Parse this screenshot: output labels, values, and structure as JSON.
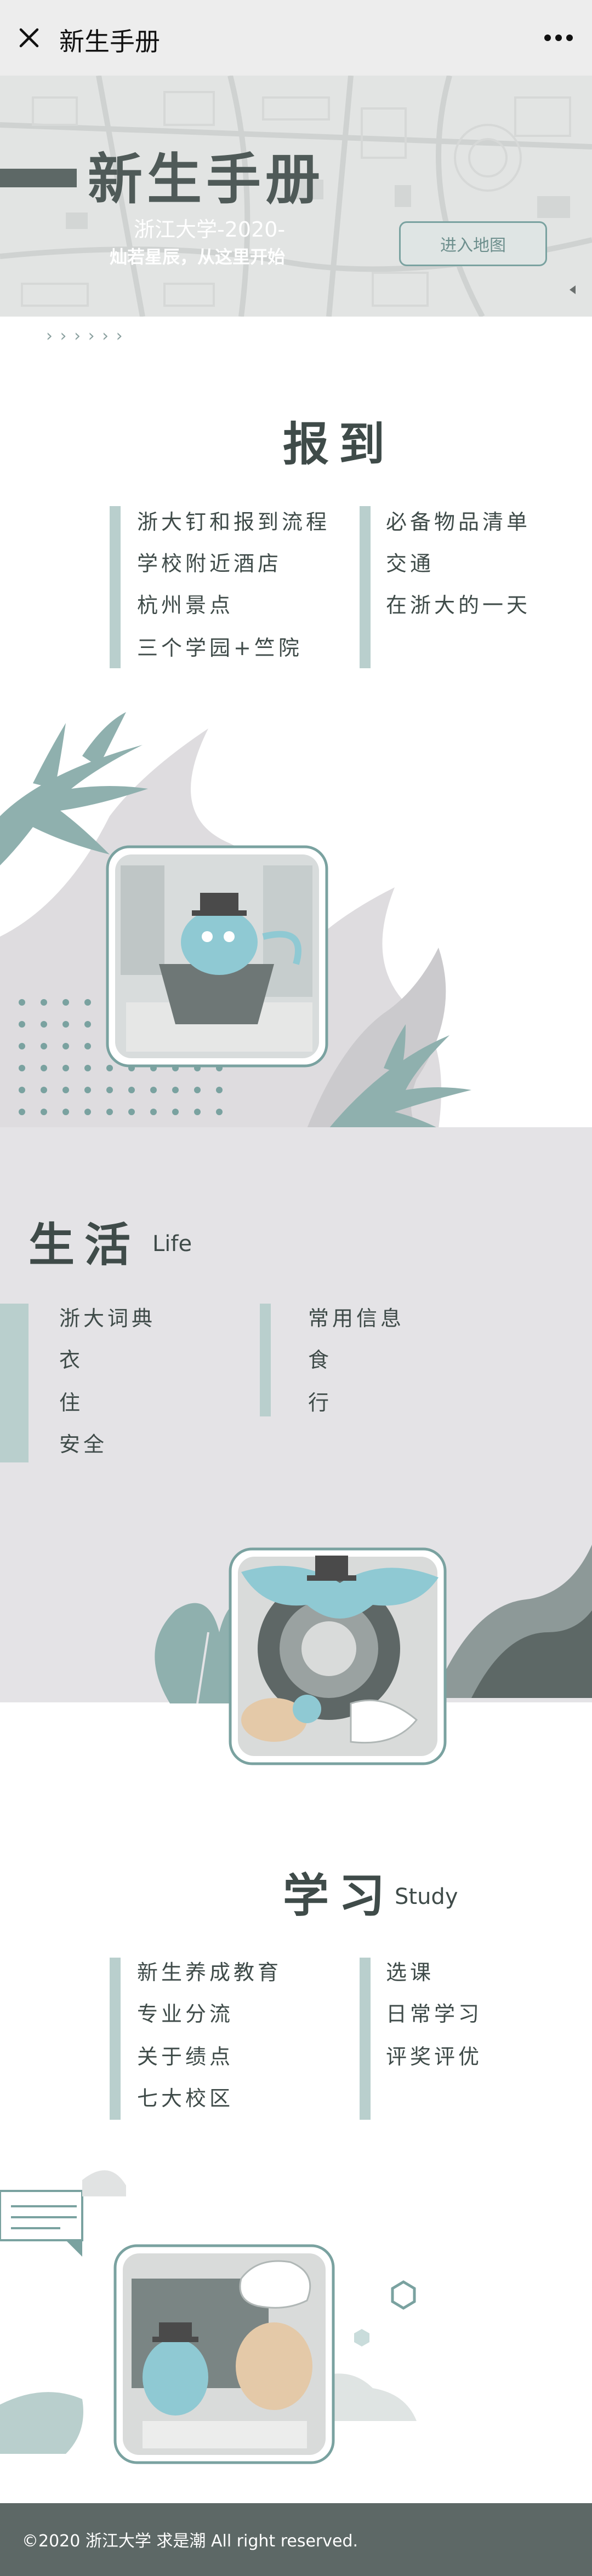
{
  "nav": {
    "title": "新生手册"
  },
  "hero": {
    "title": "新生手册",
    "subtitle_line1": "浙江大学-2020-",
    "subtitle_line2": "灿若星辰，从这里开始",
    "map_button": "进入地图",
    "chevrons": "› › › › › ›"
  },
  "sections": {
    "report": {
      "title": "报到",
      "left_items": [
        "浙大钉和报到流程",
        "学校附近酒店",
        "杭州景点",
        "三个学园+竺院"
      ],
      "right_items": [
        "必备物品清单",
        "交通",
        "在浙大的一天"
      ]
    },
    "life": {
      "title": "生活",
      "subtitle": "Life",
      "left_items": [
        "浙大词典",
        "衣",
        "住",
        "安全"
      ],
      "right_items": [
        "常用信息",
        "食",
        "行"
      ]
    },
    "study": {
      "title": "学习",
      "subtitle": "Study",
      "left_items": [
        "新生养成教育",
        "专业分流",
        "关于绩点",
        "七大校区"
      ],
      "right_items": [
        "选课",
        "日常学习",
        "评奖评优"
      ]
    }
  },
  "footer": {
    "text": "©2020 浙江大学 求是潮 All right reserved."
  },
  "colors": {
    "accent": "#7aa2a0",
    "dark": "#5d6866",
    "bar": "#b9cfcd",
    "life_bg": "#e4e3e6"
  },
  "icons": [
    "close-icon",
    "more-icon",
    "arrow-left-icon"
  ]
}
